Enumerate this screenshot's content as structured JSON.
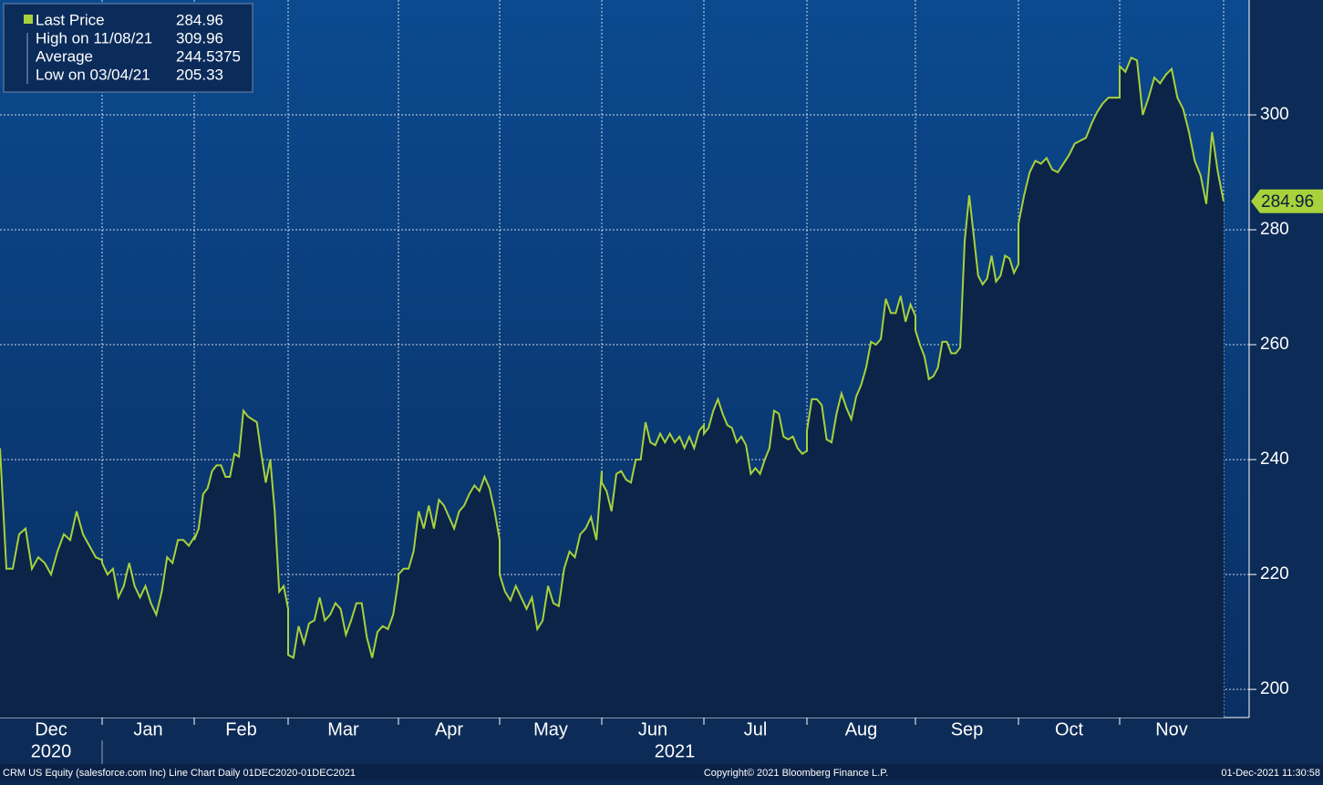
{
  "chart_data": {
    "type": "line",
    "categories": [
      "Dec",
      null,
      null,
      null,
      null,
      null,
      null,
      null,
      null,
      null,
      null,
      null,
      null,
      null,
      null,
      null,
      null,
      "Jan",
      null,
      null,
      null,
      null,
      null,
      null,
      null,
      null,
      null,
      null,
      null,
      null,
      null,
      null,
      null,
      null,
      null,
      "Feb",
      null,
      null,
      null,
      null,
      null,
      null,
      null,
      null,
      null,
      null,
      null,
      null,
      null,
      null,
      null,
      null,
      null,
      null,
      null,
      null,
      null,
      "Mar",
      null,
      null,
      null,
      null,
      null,
      null,
      null,
      null,
      null,
      null,
      null,
      null,
      null,
      null,
      null,
      null,
      null,
      null,
      null,
      null,
      null,
      "Apr",
      null,
      null,
      null,
      null,
      null,
      null,
      null,
      null,
      null,
      null,
      null,
      null,
      null,
      null,
      null,
      null,
      null,
      null,
      null,
      null,
      "May",
      null,
      null,
      null,
      null,
      null,
      null,
      null,
      null,
      null,
      null,
      null,
      null,
      null,
      null,
      null,
      null,
      null,
      null,
      null,
      "Jun",
      null,
      null,
      null,
      null,
      null,
      null,
      null,
      null,
      null,
      null,
      null,
      null,
      null,
      null,
      null,
      null,
      null,
      null,
      null,
      null,
      null,
      "Jul",
      null,
      null,
      null,
      null,
      null,
      null,
      null,
      null,
      null,
      null,
      null,
      null,
      null,
      null,
      null,
      null,
      null,
      null,
      null,
      null,
      null,
      null,
      "Aug",
      null,
      null,
      null,
      null,
      null,
      null,
      null,
      null,
      null,
      null,
      null,
      null,
      null,
      null,
      null,
      null,
      null,
      null,
      null,
      null,
      null,
      null,
      "Sep",
      null,
      null,
      null,
      null,
      null,
      null,
      null,
      null,
      null,
      null,
      null,
      null,
      null,
      null,
      null,
      null,
      null,
      null,
      null,
      null,
      null,
      null,
      null,
      "Oct",
      null,
      null,
      null,
      null,
      null,
      null,
      null,
      null,
      null,
      null,
      null,
      null,
      null,
      null,
      null,
      null,
      null,
      null,
      "Nov",
      null,
      null,
      null,
      null,
      null,
      null,
      null,
      null,
      null,
      null,
      null,
      null,
      null,
      null,
      null,
      null,
      null,
      null
    ],
    "series": [
      {
        "name": "Last Price",
        "color": "#a8d13c",
        "values": [
          242,
          221,
          221,
          227,
          228,
          221,
          223,
          222,
          220,
          224,
          227,
          226,
          231,
          227,
          225,
          223,
          222.5,
          222,
          220,
          221,
          216,
          218,
          222,
          218,
          216,
          218,
          215,
          213,
          217,
          223,
          222,
          226,
          226,
          225,
          226.5,
          226,
          228,
          234,
          235,
          238,
          239,
          239,
          237,
          237,
          241,
          240.5,
          248.5,
          247.5,
          247,
          246.5,
          241,
          236,
          240,
          231,
          217,
          218,
          214,
          206,
          205.5,
          211,
          208,
          211.5,
          212,
          216,
          212,
          213,
          215,
          214,
          209.5,
          212,
          215,
          215,
          209,
          205.5,
          210,
          211,
          210.5,
          213,
          219,
          220,
          221,
          221,
          224,
          231,
          228,
          232,
          228,
          233,
          232,
          230,
          228,
          231,
          232,
          234,
          235.5,
          234.5,
          237,
          235,
          231,
          226,
          220,
          217,
          215.5,
          218,
          216,
          214,
          216,
          210.5,
          212,
          218,
          215,
          214.5,
          221,
          224,
          223,
          227,
          228,
          230,
          226,
          238,
          236,
          234.5,
          231,
          237.5,
          238,
          236.5,
          236,
          240,
          240,
          246.5,
          243,
          242.5,
          244.5,
          243,
          244.5,
          243,
          244,
          242,
          244,
          242,
          245,
          246,
          244.5,
          245.5,
          248.5,
          250.5,
          248,
          246,
          245.5,
          243,
          244,
          242.5,
          237.5,
          238.5,
          237.5,
          240,
          242,
          248.5,
          248,
          244,
          243.5,
          244,
          242,
          241,
          241.5,
          245,
          250.5,
          250.5,
          249.5,
          243.5,
          243,
          248,
          251.5,
          249,
          247,
          251,
          253,
          256,
          260.5,
          260,
          261,
          268,
          265.5,
          265.5,
          268.5,
          264,
          267,
          265,
          262.5,
          260,
          258,
          254,
          254.5,
          256,
          260.5,
          260.5,
          258.5,
          258.5,
          259.5,
          278,
          286,
          279,
          272,
          270.5,
          271.5,
          275.5,
          271,
          272,
          275.5,
          275,
          272.5,
          274,
          281,
          286,
          290,
          292,
          291.5,
          292.5,
          290.5,
          290,
          291.5,
          293,
          295,
          295.5,
          296,
          298.5,
          300.5,
          302,
          303,
          303,
          303,
          308.5,
          307.5,
          309.96,
          309.5,
          300,
          303,
          306.5,
          305.5,
          307,
          308,
          303,
          301,
          297,
          292,
          289.5,
          284.5,
          297,
          290,
          284.96
        ]
      }
    ],
    "last_price": 284.96,
    "legend_stats": [
      {
        "label": "High on 11/08/21",
        "value": 309.96
      },
      {
        "label": "Average",
        "value": 244.5375
      },
      {
        "label": "Low on 03/04/21",
        "value": 205.33
      }
    ],
    "year_labels": [
      "2020",
      "2021"
    ],
    "ylim": [
      195.1,
      320
    ],
    "yticks": [
      200,
      220,
      240,
      260,
      280,
      300
    ],
    "grid": true,
    "footer": {
      "left": "CRM US Equity (salesforce.com Inc) Line Chart  Daily 01DEC2020-01DEC2021",
      "center": "Copyright© 2021 Bloomberg Finance L.P.",
      "right": "01-Dec-2021 11:30:58"
    }
  }
}
